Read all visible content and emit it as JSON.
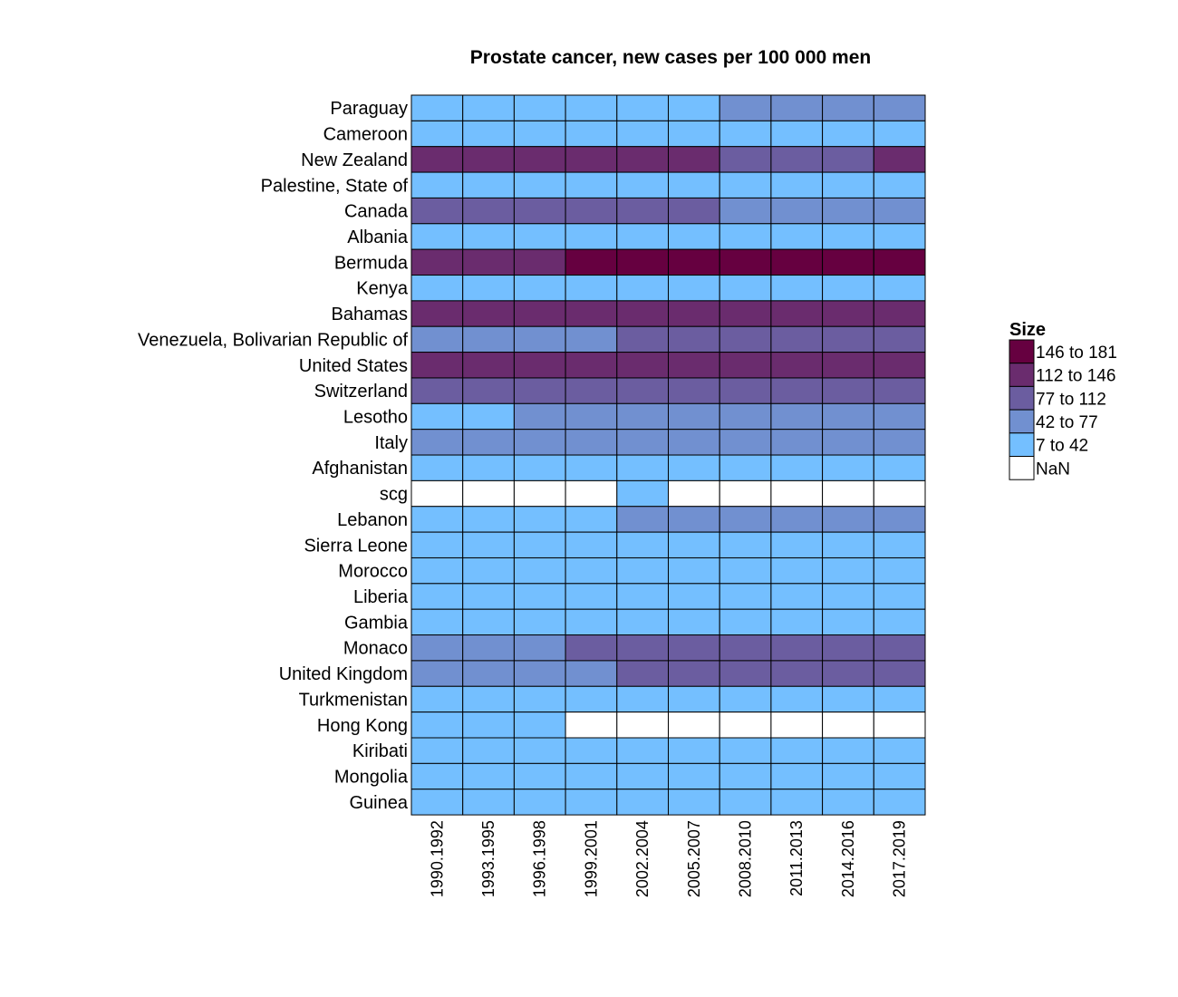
{
  "chart_data": {
    "type": "heatmap",
    "title": "Prostate cancer, new cases per 100 000 men",
    "columns": [
      "1990.1992",
      "1993.1995",
      "1996.1998",
      "1999.2001",
      "2002.2004",
      "2005.2007",
      "2008.2010",
      "2011.2013",
      "2014.2016",
      "2017.2019"
    ],
    "rows": [
      "Paraguay",
      "Cameroon",
      "New Zealand",
      "Palestine, State of",
      "Canada",
      "Albania",
      "Bermuda",
      "Kenya",
      "Bahamas",
      "Venezuela, Bolivarian Republic of",
      "United States",
      "Switzerland",
      "Lesotho",
      "Italy",
      "Afghanistan",
      "scg",
      "Lebanon",
      "Sierra Leone",
      "Morocco",
      "Liberia",
      "Gambia",
      "Monaco",
      "United Kingdom",
      "Turkmenistan",
      "Hong Kong",
      "Kiribati",
      "Mongolia",
      "Guinea"
    ],
    "bins": [
      {
        "label": "146 to 181",
        "color": "#660040"
      },
      {
        "label": "112 to 146",
        "color": "#6a2c6e"
      },
      {
        "label": "77 to 112",
        "color": "#6b5da0"
      },
      {
        "label": "42 to 77",
        "color": "#7190d0"
      },
      {
        "label": "7 to 42",
        "color": "#74bfff"
      },
      {
        "label": "NaN",
        "color": "#ffffff"
      }
    ],
    "cells": [
      [
        4,
        4,
        4,
        4,
        4,
        4,
        3,
        3,
        3,
        3
      ],
      [
        4,
        4,
        4,
        4,
        4,
        4,
        4,
        4,
        4,
        4
      ],
      [
        1,
        1,
        1,
        1,
        1,
        1,
        2,
        2,
        2,
        1
      ],
      [
        4,
        4,
        4,
        4,
        4,
        4,
        4,
        4,
        4,
        4
      ],
      [
        2,
        2,
        2,
        2,
        2,
        2,
        3,
        3,
        3,
        3
      ],
      [
        4,
        4,
        4,
        4,
        4,
        4,
        4,
        4,
        4,
        4
      ],
      [
        1,
        1,
        1,
        0,
        0,
        0,
        0,
        0,
        0,
        0
      ],
      [
        4,
        4,
        4,
        4,
        4,
        4,
        4,
        4,
        4,
        4
      ],
      [
        1,
        1,
        1,
        1,
        1,
        1,
        1,
        1,
        1,
        1
      ],
      [
        3,
        3,
        3,
        3,
        2,
        2,
        2,
        2,
        2,
        2
      ],
      [
        1,
        1,
        1,
        1,
        1,
        1,
        1,
        1,
        1,
        1
      ],
      [
        2,
        2,
        2,
        2,
        2,
        2,
        2,
        2,
        2,
        2
      ],
      [
        4,
        4,
        3,
        3,
        3,
        3,
        3,
        3,
        3,
        3
      ],
      [
        3,
        3,
        3,
        3,
        3,
        3,
        3,
        3,
        3,
        3
      ],
      [
        4,
        4,
        4,
        4,
        4,
        4,
        4,
        4,
        4,
        4
      ],
      [
        5,
        5,
        5,
        5,
        4,
        5,
        5,
        5,
        5,
        5
      ],
      [
        4,
        4,
        4,
        4,
        3,
        3,
        3,
        3,
        3,
        3
      ],
      [
        4,
        4,
        4,
        4,
        4,
        4,
        4,
        4,
        4,
        4
      ],
      [
        4,
        4,
        4,
        4,
        4,
        4,
        4,
        4,
        4,
        4
      ],
      [
        4,
        4,
        4,
        4,
        4,
        4,
        4,
        4,
        4,
        4
      ],
      [
        4,
        4,
        4,
        4,
        4,
        4,
        4,
        4,
        4,
        4
      ],
      [
        3,
        3,
        3,
        2,
        2,
        2,
        2,
        2,
        2,
        2
      ],
      [
        3,
        3,
        3,
        3,
        2,
        2,
        2,
        2,
        2,
        2
      ],
      [
        4,
        4,
        4,
        4,
        4,
        4,
        4,
        4,
        4,
        4
      ],
      [
        4,
        4,
        4,
        5,
        5,
        5,
        5,
        5,
        5,
        5
      ],
      [
        4,
        4,
        4,
        4,
        4,
        4,
        4,
        4,
        4,
        4
      ],
      [
        4,
        4,
        4,
        4,
        4,
        4,
        4,
        4,
        4,
        4
      ],
      [
        4,
        4,
        4,
        4,
        4,
        4,
        4,
        4,
        4,
        4
      ]
    ],
    "legend": {
      "title": "Size",
      "placement": "right"
    },
    "grid": true
  }
}
